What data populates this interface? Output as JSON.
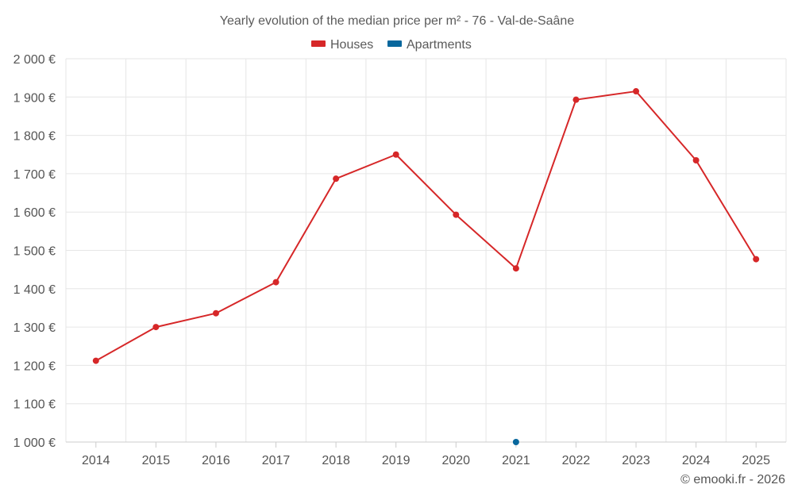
{
  "chart_data": {
    "type": "line",
    "title": "Yearly evolution of the median price per m² - 76 - Val-de-Saâne",
    "categories": [
      "2014",
      "2015",
      "2016",
      "2017",
      "2018",
      "2019",
      "2020",
      "2021",
      "2022",
      "2023",
      "2024",
      "2025"
    ],
    "series": [
      {
        "name": "Houses",
        "color": "#d62728",
        "values": [
          1212,
          1300,
          1336,
          1417,
          1687,
          1750,
          1593,
          1453,
          1893,
          1915,
          1735,
          1477
        ]
      },
      {
        "name": "Apartments",
        "color": "#08679d",
        "values": [
          null,
          null,
          null,
          null,
          null,
          null,
          null,
          1000,
          null,
          null,
          null,
          null
        ]
      }
    ],
    "ylim": [
      1000,
      2000
    ],
    "yticks": [
      1000,
      1100,
      1200,
      1300,
      1400,
      1500,
      1600,
      1700,
      1800,
      1900,
      2000
    ],
    "ytick_labels": [
      "1 000 €",
      "1 100 €",
      "1 200 €",
      "1 300 €",
      "1 400 €",
      "1 500 €",
      "1 600 €",
      "1 700 €",
      "1 800 €",
      "1 900 €",
      "2 000 €"
    ],
    "legend_position": "top-center",
    "grid": true,
    "xlabel": "",
    "ylabel": ""
  },
  "credit": "© emooki.fr - 2026"
}
